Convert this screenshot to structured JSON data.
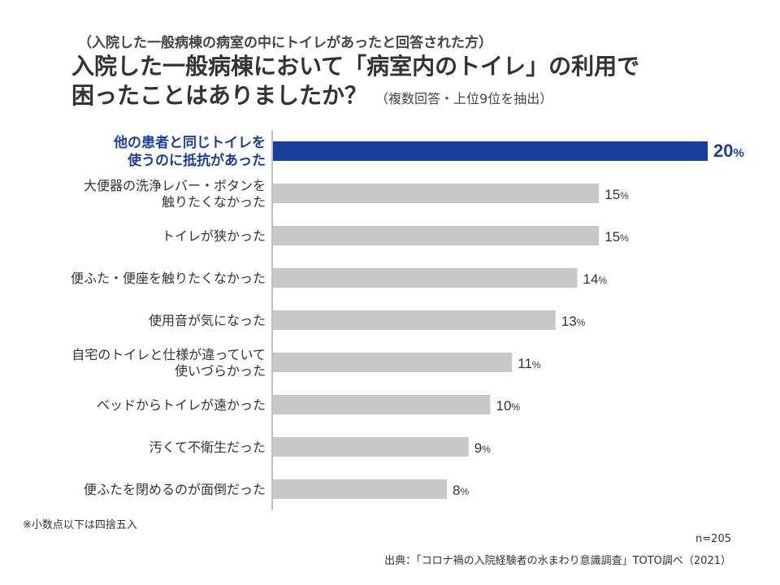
{
  "subtitle": "（入院した一般病棟の病室の中にトイレがあったと回答された方）",
  "title": {
    "line1": "入院した一般病棟において「病室内のトイレ」の利用で",
    "line2": "困ったことはありましたか？",
    "note": "（複数回答・上位9位を抽出）"
  },
  "colors": {
    "highlight": "#1a3f9a",
    "bar": "#c8c8c8",
    "axis": "#aaaaaa",
    "text": "#333333"
  },
  "chart_data": {
    "type": "bar",
    "orientation": "horizontal",
    "categories": [
      [
        "他の患者と同じトイレを",
        "使うのに抵抗があった"
      ],
      [
        "大便器の洗浄レバー・ボタンを",
        "触りたくなかった"
      ],
      [
        "トイレが狭かった"
      ],
      [
        "便ふた・便座を触りたくなかった"
      ],
      [
        "使用音が気になった"
      ],
      [
        "自宅のトイレと仕様が違っていて",
        "使いづらかった"
      ],
      [
        "ベッドからトイレが遠かった"
      ],
      [
        "汚くて不衛生だった"
      ],
      [
        "便ふたを閉めるのが面倒だった"
      ]
    ],
    "values": [
      20,
      15,
      15,
      14,
      13,
      11,
      10,
      9,
      8
    ],
    "unit": "%",
    "highlight_index": 0,
    "xlim": [
      0,
      20
    ],
    "grid": false
  },
  "footnote": "※小数点以下は四捨五入",
  "sample_size": "n=205",
  "source": "出典：「コロナ禍の入院経験者の水まわり意識調査」TOTO調べ（2021）"
}
